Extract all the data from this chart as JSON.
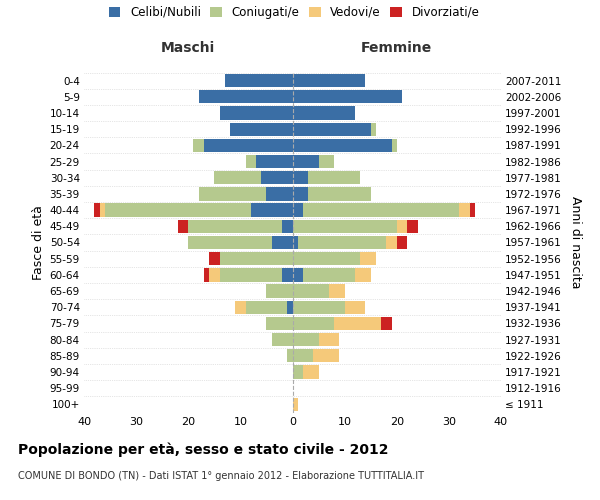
{
  "age_groups": [
    "100+",
    "95-99",
    "90-94",
    "85-89",
    "80-84",
    "75-79",
    "70-74",
    "65-69",
    "60-64",
    "55-59",
    "50-54",
    "45-49",
    "40-44",
    "35-39",
    "30-34",
    "25-29",
    "20-24",
    "15-19",
    "10-14",
    "5-9",
    "0-4"
  ],
  "birth_years": [
    "≤ 1911",
    "1912-1916",
    "1917-1921",
    "1922-1926",
    "1927-1931",
    "1932-1936",
    "1937-1941",
    "1942-1946",
    "1947-1951",
    "1952-1956",
    "1957-1961",
    "1962-1966",
    "1967-1971",
    "1972-1976",
    "1977-1981",
    "1982-1986",
    "1987-1991",
    "1992-1996",
    "1997-2001",
    "2002-2006",
    "2007-2011"
  ],
  "male_celibi": [
    0,
    0,
    0,
    0,
    0,
    0,
    1,
    0,
    2,
    0,
    4,
    2,
    8,
    5,
    6,
    7,
    17,
    12,
    14,
    18,
    13
  ],
  "male_coniugati": [
    0,
    0,
    0,
    1,
    4,
    5,
    8,
    5,
    12,
    14,
    16,
    18,
    28,
    13,
    9,
    2,
    2,
    0,
    0,
    0,
    0
  ],
  "male_vedovi": [
    0,
    0,
    0,
    0,
    0,
    0,
    2,
    0,
    2,
    0,
    0,
    0,
    1,
    0,
    0,
    0,
    0,
    0,
    0,
    0,
    0
  ],
  "male_divorziati": [
    0,
    0,
    0,
    0,
    0,
    0,
    0,
    0,
    1,
    2,
    0,
    2,
    1,
    0,
    0,
    0,
    0,
    0,
    0,
    0,
    0
  ],
  "fem_nubili": [
    0,
    0,
    0,
    0,
    0,
    0,
    0,
    0,
    2,
    0,
    1,
    0,
    2,
    3,
    3,
    5,
    19,
    15,
    12,
    21,
    14
  ],
  "fem_coniugate": [
    0,
    0,
    2,
    4,
    5,
    8,
    10,
    7,
    10,
    13,
    17,
    20,
    30,
    12,
    10,
    3,
    1,
    1,
    0,
    0,
    0
  ],
  "fem_vedove": [
    1,
    0,
    3,
    5,
    4,
    9,
    4,
    3,
    3,
    3,
    2,
    2,
    2,
    0,
    0,
    0,
    0,
    0,
    0,
    0,
    0
  ],
  "fem_divorziate": [
    0,
    0,
    0,
    0,
    0,
    2,
    0,
    0,
    0,
    0,
    2,
    2,
    1,
    0,
    0,
    0,
    0,
    0,
    0,
    0,
    0
  ],
  "color_celibi": "#3a6ea5",
  "color_coniugati": "#b5c98e",
  "color_vedovi": "#f5c97a",
  "color_divorziati": "#cc2222",
  "xlim": 40,
  "title": "Popolazione per età, sesso e stato civile - 2012",
  "subtitle": "COMUNE DI BONDO (TN) - Dati ISTAT 1° gennaio 2012 - Elaborazione TUTTITALIA.IT",
  "ylabel_left": "Fasce di età",
  "ylabel_right": "Anni di nascita",
  "label_maschi": "Maschi",
  "label_femmine": "Femmine",
  "legend_labels": [
    "Celibi/Nubili",
    "Coniugati/e",
    "Vedovi/e",
    "Divorziati/e"
  ],
  "bg_color": "#ffffff",
  "grid_color": "#cccccc"
}
